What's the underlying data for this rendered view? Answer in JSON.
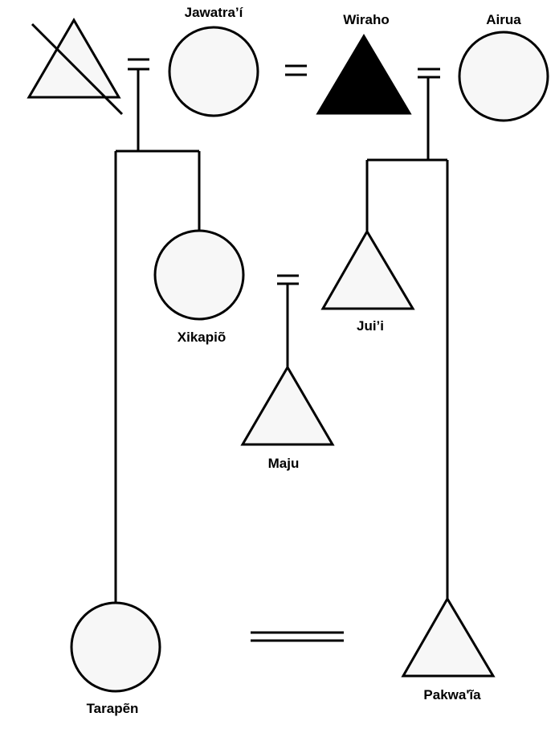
{
  "people": {
    "jawatrai": {
      "name": "Jawatra’í",
      "sex": "female"
    },
    "wiraho": {
      "name": "Wiraho",
      "sex": "male",
      "status": "filled"
    },
    "airua": {
      "name": "Airua",
      "sex": "female"
    },
    "xikapio": {
      "name": "Xikapiõ",
      "sex": "female"
    },
    "juii": {
      "name": "Jui’i",
      "sex": "male"
    },
    "maju": {
      "name": "Maju",
      "sex": "male"
    },
    "tarapen": {
      "name": "Tarapẽn",
      "sex": "female"
    },
    "pakwaia": {
      "name": "Pakwa'ĩa",
      "sex": "male"
    },
    "deceased_man": {
      "name": "",
      "sex": "male",
      "status": "deceased"
    }
  },
  "colors": {
    "line": "#000000",
    "symbol_fill": "#f7f7f7",
    "filled_symbol": "#000000",
    "background": "#ffffff"
  }
}
